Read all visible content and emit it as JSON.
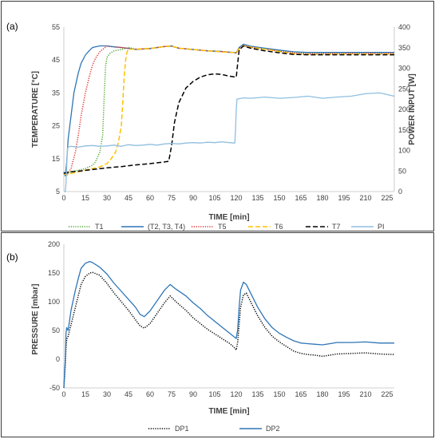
{
  "figure": {
    "panel_a_label": "(a)",
    "panel_b_label": "(b)"
  },
  "chart_data": [
    {
      "type": "line",
      "xlabel": "TIME [min]",
      "ylabel": "TEMPERATURE [°C]",
      "y2label": "POWER INPUT [W]",
      "xlim": [
        0,
        230
      ],
      "ylim": [
        5,
        55
      ],
      "y2lim": [
        0,
        400
      ],
      "xticks": [
        0,
        15,
        30,
        45,
        60,
        75,
        90,
        105,
        120,
        135,
        150,
        165,
        180,
        195,
        210,
        225
      ],
      "yticks": [
        5,
        15,
        25,
        35,
        45,
        55
      ],
      "y2ticks": [
        0,
        50,
        100,
        150,
        200,
        250,
        300,
        350,
        400
      ],
      "grid": "off",
      "legend_position": "bottom",
      "series": [
        {
          "name": "T1",
          "axis": "left",
          "color": "#4ea72e",
          "dash": "dot",
          "x": [
            0,
            1,
            2,
            5,
            10,
            15,
            20,
            22,
            25,
            27,
            28,
            29,
            30,
            32,
            35,
            40,
            45,
            50,
            60,
            70,
            75,
            80,
            90,
            100,
            110,
            120,
            122,
            125,
            130,
            140,
            150,
            160,
            170,
            180,
            190,
            200,
            210,
            220,
            230
          ],
          "y": [
            10.5,
            9.8,
            10.5,
            11,
            11.5,
            12,
            13,
            14,
            17,
            22,
            33,
            43,
            45.8,
            47,
            47.8,
            48.2,
            48.8,
            48.3,
            48.5,
            49.1,
            49.2,
            48.6,
            48.2,
            47.8,
            47.6,
            47.2,
            48.5,
            49.3,
            48.8,
            48.3,
            47.8,
            47.3,
            47,
            47,
            47.1,
            47.1,
            47.2,
            47.2,
            47.2
          ]
        },
        {
          "name": "(T2, T3, T4)",
          "axis": "left",
          "color": "#2e75b6",
          "dash": "solid",
          "x": [
            0,
            1,
            2,
            3,
            5,
            7,
            10,
            12,
            15,
            18,
            20,
            25,
            30,
            35,
            40,
            50,
            60,
            70,
            75,
            80,
            90,
            100,
            110,
            120,
            122,
            125,
            130,
            140,
            150,
            160,
            170,
            180,
            190,
            200,
            210,
            220,
            230
          ],
          "y": [
            11,
            9.8,
            14,
            21,
            28,
            35,
            41,
            44,
            46.5,
            48,
            48.8,
            49.3,
            49.3,
            49,
            48.8,
            48.2,
            48.5,
            49.1,
            49.3,
            48.6,
            48.2,
            47.8,
            47.6,
            47.2,
            48.8,
            49.8,
            49.2,
            48.6,
            48,
            47.5,
            47.3,
            47.3,
            47.3,
            47.3,
            47.3,
            47.3,
            47.3
          ]
        },
        {
          "name": "T5",
          "axis": "left",
          "color": "#e03030",
          "dash": "dot",
          "x": [
            0,
            2,
            5,
            8,
            10,
            12,
            15,
            18,
            20,
            22,
            25,
            28,
            30,
            35,
            40,
            50,
            60,
            70,
            75,
            80,
            90,
            100,
            110,
            120,
            122,
            125,
            130,
            140,
            150,
            160,
            170,
            180,
            190,
            200,
            210,
            220,
            230
          ],
          "y": [
            10.5,
            10,
            12,
            17,
            22,
            28,
            35,
            40.5,
            43.5,
            45.5,
            47.5,
            48.6,
            49.2,
            49,
            48.8,
            48.3,
            48.5,
            49.1,
            49.2,
            48.6,
            48.2,
            47.8,
            47.5,
            47.2,
            48.5,
            49.4,
            48.9,
            48.3,
            47.7,
            47.1,
            46.9,
            46.9,
            47,
            47,
            47,
            47,
            47
          ]
        },
        {
          "name": "T6",
          "axis": "left",
          "color": "#ffc000",
          "dash": "dash",
          "x": [
            0,
            2,
            5,
            10,
            15,
            20,
            25,
            30,
            33,
            36,
            38,
            40,
            41,
            42,
            43,
            44,
            45,
            50,
            60,
            70,
            75,
            80,
            90,
            100,
            110,
            120,
            122,
            125,
            130,
            140,
            150,
            160,
            170,
            180,
            190,
            200,
            210,
            220,
            230
          ],
          "y": [
            10.5,
            10,
            10.5,
            11,
            11.5,
            12,
            12.5,
            13.5,
            15,
            17,
            20,
            25,
            32,
            40,
            45,
            47.5,
            48.3,
            48.3,
            48.5,
            49.1,
            49.3,
            48.6,
            48.2,
            47.8,
            47.5,
            47.2,
            48.5,
            49.4,
            48.9,
            48.3,
            47.6,
            46.9,
            46.7,
            46.7,
            46.8,
            46.8,
            46.8,
            46.8,
            46.8
          ]
        },
        {
          "name": "T7",
          "axis": "left",
          "color": "#000000",
          "dash": "dash",
          "x": [
            0,
            2,
            5,
            10,
            20,
            30,
            40,
            50,
            60,
            70,
            73,
            75,
            77,
            80,
            85,
            90,
            95,
            100,
            105,
            110,
            115,
            120,
            121,
            122,
            125,
            130,
            140,
            150,
            160,
            170,
            180,
            190,
            200,
            210,
            220,
            230
          ],
          "y": [
            10.5,
            10.8,
            11,
            11.2,
            11.7,
            12.2,
            12.6,
            13.1,
            13.5,
            14,
            14.2,
            19,
            26,
            32,
            36.5,
            38.5,
            39.8,
            40.5,
            40.8,
            40.6,
            40.1,
            39.8,
            44,
            48,
            49.3,
            48.6,
            47.8,
            47.2,
            46.7,
            46.6,
            46.6,
            46.6,
            46.6,
            46.6,
            46.6,
            46.6
          ]
        },
        {
          "name": "PI",
          "axis": "right",
          "color": "#8fbfe0",
          "dash": "solid",
          "x": [
            0,
            1,
            1.5,
            2,
            2.5,
            3,
            5,
            10,
            15,
            20,
            25,
            30,
            35,
            40,
            45,
            50,
            55,
            60,
            65,
            70,
            75,
            80,
            85,
            90,
            95,
            100,
            105,
            110,
            115,
            119,
            119.5,
            120,
            120.5,
            125,
            130,
            140,
            150,
            160,
            170,
            180,
            190,
            200,
            210,
            220,
            230
          ],
          "y": [
            0,
            0,
            20,
            60,
            105,
            108,
            110,
            108,
            111,
            112,
            110,
            111,
            113,
            110,
            114,
            112,
            113,
            115,
            113,
            116,
            117,
            116,
            118,
            119,
            118,
            120,
            119,
            121,
            119,
            118,
            150,
            200,
            225,
            228,
            227,
            230,
            227,
            229,
            232,
            227,
            230,
            232,
            238,
            240,
            232
          ]
        }
      ]
    },
    {
      "type": "line",
      "xlabel": "TIME [min]",
      "ylabel": "PRESSURE [mbar]",
      "xlim": [
        0,
        230
      ],
      "ylim": [
        -50,
        200
      ],
      "xticks": [
        0,
        15,
        30,
        45,
        60,
        75,
        90,
        105,
        120,
        135,
        150,
        165,
        180,
        195,
        210,
        225
      ],
      "yticks": [
        -50,
        0,
        50,
        100,
        150,
        200
      ],
      "grid": "off",
      "legend_position": "bottom",
      "series": [
        {
          "name": "DP1",
          "color": "#000000",
          "dash": "dot",
          "x": [
            0,
            1,
            1.5,
            2,
            3,
            5,
            8,
            10,
            12,
            15,
            18,
            20,
            25,
            30,
            35,
            40,
            45,
            50,
            53,
            56,
            60,
            65,
            70,
            74,
            78,
            85,
            90,
            95,
            100,
            105,
            110,
            115,
            118,
            120,
            121,
            122,
            123,
            125,
            127,
            130,
            135,
            140,
            145,
            150,
            155,
            160,
            165,
            170,
            175,
            180,
            185,
            190,
            200,
            210,
            220,
            230
          ],
          "y": [
            -50,
            -10,
            20,
            35,
            40,
            60,
            90,
            110,
            130,
            144,
            150,
            151,
            146,
            132,
            115,
            100,
            85,
            68,
            58,
            54,
            62,
            80,
            98,
            110,
            100,
            85,
            72,
            62,
            52,
            44,
            36,
            28,
            22,
            16,
            30,
            60,
            90,
            112,
            115,
            100,
            75,
            55,
            40,
            30,
            22,
            14,
            10,
            8,
            7,
            5,
            7,
            9,
            10,
            11,
            9,
            8
          ]
        },
        {
          "name": "DP2",
          "color": "#2e75b6",
          "dash": "solid",
          "x": [
            0,
            1,
            1.5,
            2,
            3,
            5,
            8,
            10,
            12,
            15,
            18,
            20,
            25,
            30,
            35,
            40,
            45,
            50,
            53,
            56,
            60,
            65,
            70,
            74,
            78,
            85,
            90,
            95,
            100,
            105,
            110,
            115,
            118,
            120,
            121,
            122,
            123,
            125,
            127,
            130,
            135,
            140,
            145,
            150,
            155,
            160,
            165,
            170,
            175,
            180,
            185,
            190,
            200,
            210,
            220,
            230
          ],
          "y": [
            -50,
            0,
            45,
            55,
            50,
            85,
            120,
            140,
            158,
            167,
            170,
            168,
            160,
            148,
            132,
            118,
            104,
            90,
            78,
            74,
            84,
            102,
            120,
            130,
            122,
            110,
            98,
            88,
            76,
            66,
            56,
            46,
            40,
            36,
            52,
            90,
            120,
            134,
            130,
            115,
            90,
            70,
            55,
            45,
            38,
            32,
            28,
            27,
            26,
            25,
            27,
            29,
            29,
            30,
            28,
            28
          ]
        }
      ]
    }
  ]
}
